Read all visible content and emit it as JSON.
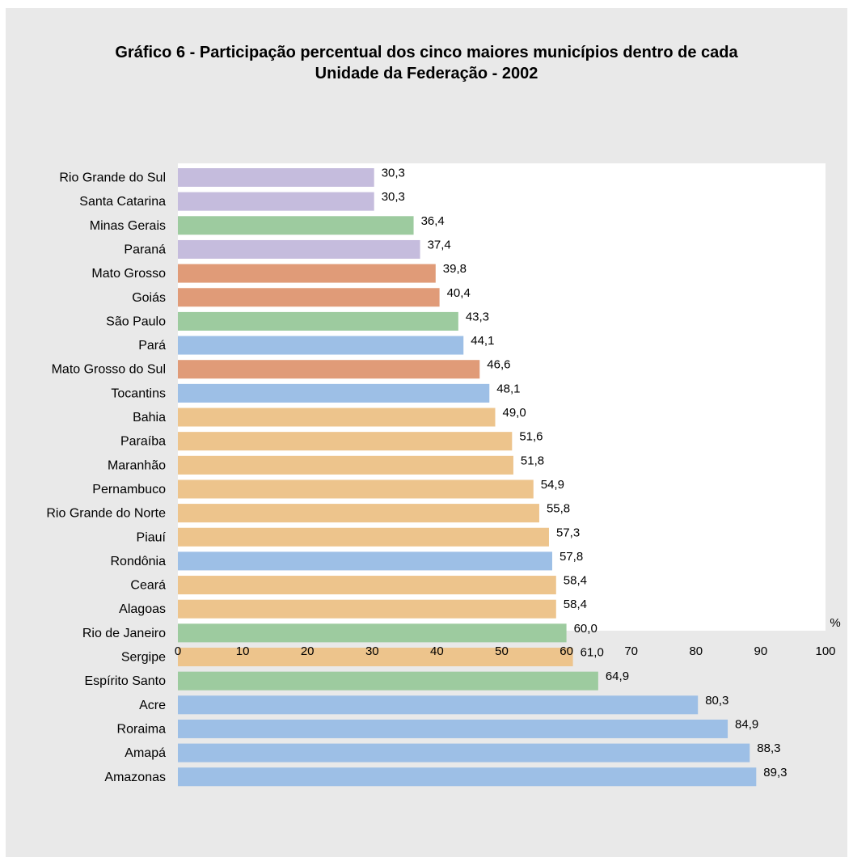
{
  "chart_data": {
    "type": "bar",
    "orientation": "horizontal",
    "title_line1": "Gráfico 6 - Participação percentual dos cinco maiores municípios dentro de cada",
    "title_line2": "Unidade da Federação - 2002",
    "unit_label": "%",
    "xlim": [
      0,
      100
    ],
    "ticks": [
      "0",
      "10",
      "20",
      "30",
      "40",
      "50",
      "60",
      "70",
      "80",
      "90",
      "100"
    ],
    "tick_values": [
      0,
      10,
      20,
      30,
      40,
      50,
      60,
      70,
      80,
      90,
      100
    ],
    "grid": false,
    "colors": {
      "sul": "#c5bcdd",
      "sudeste": "#9dcb9f",
      "centro_oeste": "#e09b78",
      "norte": "#9dbfe6",
      "nordeste": "#edc48c"
    },
    "bars": [
      {
        "category": "Rio Grande do Sul",
        "value": 30.3,
        "label": "30,3",
        "group": "sul"
      },
      {
        "category": "Santa Catarina",
        "value": 30.3,
        "label": "30,3",
        "group": "sul"
      },
      {
        "category": "Minas Gerais",
        "value": 36.4,
        "label": "36,4",
        "group": "sudeste"
      },
      {
        "category": "Paraná",
        "value": 37.4,
        "label": "37,4",
        "group": "sul"
      },
      {
        "category": "Mato Grosso",
        "value": 39.8,
        "label": "39,8",
        "group": "centro_oeste"
      },
      {
        "category": "Goiás",
        "value": 40.4,
        "label": "40,4",
        "group": "centro_oeste"
      },
      {
        "category": "São Paulo",
        "value": 43.3,
        "label": "43,3",
        "group": "sudeste"
      },
      {
        "category": "Pará",
        "value": 44.1,
        "label": "44,1",
        "group": "norte"
      },
      {
        "category": "Mato Grosso do Sul",
        "value": 46.6,
        "label": "46,6",
        "group": "centro_oeste"
      },
      {
        "category": "Tocantins",
        "value": 48.1,
        "label": "48,1",
        "group": "norte"
      },
      {
        "category": "Bahia",
        "value": 49.0,
        "label": "49,0",
        "group": "nordeste"
      },
      {
        "category": "Paraíba",
        "value": 51.6,
        "label": "51,6",
        "group": "nordeste"
      },
      {
        "category": "Maranhão",
        "value": 51.8,
        "label": "51,8",
        "group": "nordeste"
      },
      {
        "category": "Pernambuco",
        "value": 54.9,
        "label": "54,9",
        "group": "nordeste"
      },
      {
        "category": "Rio Grande do Norte",
        "value": 55.8,
        "label": "55,8",
        "group": "nordeste"
      },
      {
        "category": "Piauí",
        "value": 57.3,
        "label": "57,3",
        "group": "nordeste"
      },
      {
        "category": "Rondônia",
        "value": 57.8,
        "label": "57,8",
        "group": "norte"
      },
      {
        "category": "Ceará",
        "value": 58.4,
        "label": "58,4",
        "group": "nordeste"
      },
      {
        "category": "Alagoas",
        "value": 58.4,
        "label": "58,4",
        "group": "nordeste"
      },
      {
        "category": "Rio de Janeiro",
        "value": 60.0,
        "label": "60,0",
        "group": "sudeste"
      },
      {
        "category": "Sergipe",
        "value": 61.0,
        "label": "61,0",
        "group": "nordeste"
      },
      {
        "category": "Espírito Santo",
        "value": 64.9,
        "label": "64,9",
        "group": "sudeste"
      },
      {
        "category": "Acre",
        "value": 80.3,
        "label": "80,3",
        "group": "norte"
      },
      {
        "category": "Roraima",
        "value": 84.9,
        "label": "84,9",
        "group": "norte"
      },
      {
        "category": "Amapá",
        "value": 88.3,
        "label": "88,3",
        "group": "norte"
      },
      {
        "category": "Amazonas",
        "value": 89.3,
        "label": "89,3",
        "group": "norte"
      }
    ]
  }
}
